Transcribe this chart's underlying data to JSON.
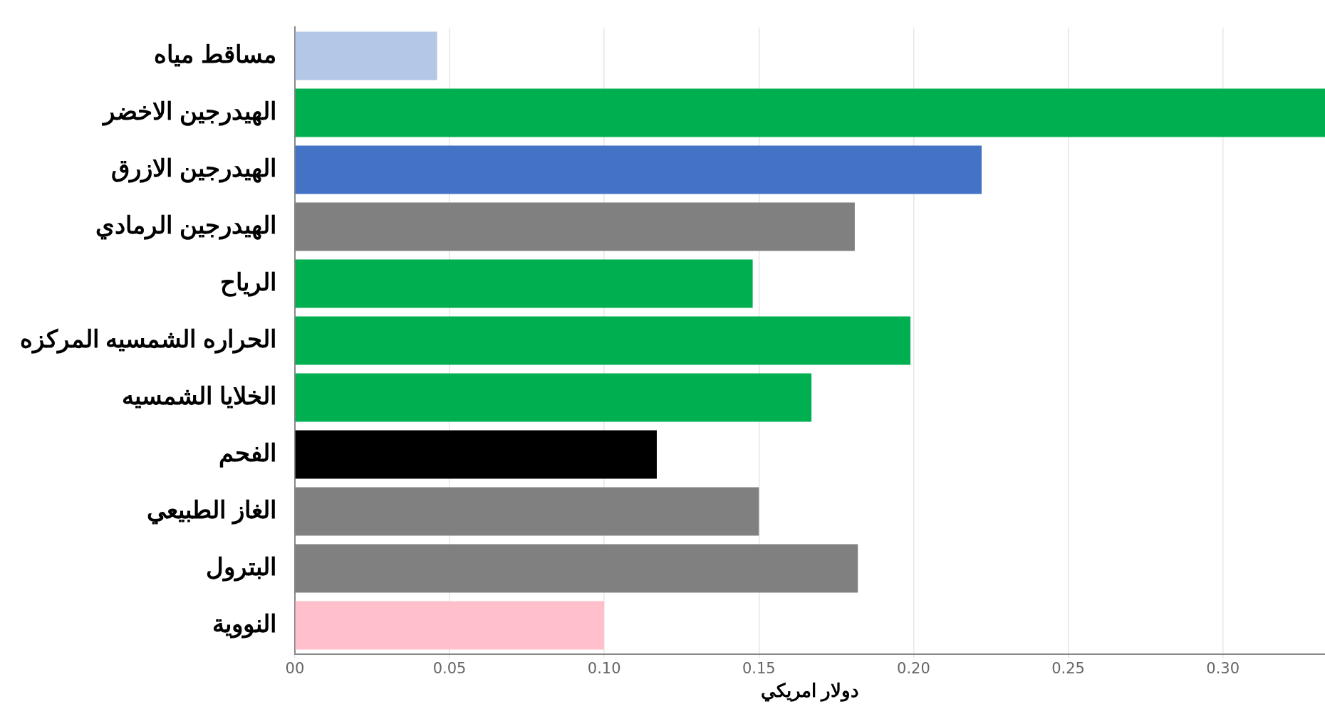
{
  "chart_data": {
    "type": "bar",
    "orientation": "horizontal",
    "xlabel": "دولار امريكي",
    "categories": [
      "مساقط مياه",
      "الهيدرجين الاخضر",
      "الهيدرجين الازرق",
      "الهيدرجين الرمادي",
      "الرياح",
      "الحراره الشمسيه المركزه",
      "الخلايا الشمسيه",
      "الفحم",
      "الغاز الطبيعي",
      "البترول",
      "النووية"
    ],
    "values": [
      0.046,
      0.333,
      0.222,
      0.181,
      0.148,
      0.199,
      0.167,
      0.117,
      0.15,
      0.182,
      0.1
    ],
    "colors": [
      "#b4c7e7",
      "#00b050",
      "#4472c4",
      "#808080",
      "#00b050",
      "#00b050",
      "#00b050",
      "#000000",
      "#808080",
      "#808080",
      "#ffc0cb"
    ],
    "xlim": [
      0,
      0.333
    ],
    "xticks": [
      {
        "value": 0,
        "label": "00"
      },
      {
        "value": 0.05,
        "label": "0.05"
      },
      {
        "value": 0.1,
        "label": "0.10"
      },
      {
        "value": 0.15,
        "label": "0.15"
      },
      {
        "value": 0.2,
        "label": "0.20"
      },
      {
        "value": 0.25,
        "label": "0.25"
      },
      {
        "value": 0.3,
        "label": "0.30"
      }
    ],
    "grid": "x",
    "legend": false
  }
}
